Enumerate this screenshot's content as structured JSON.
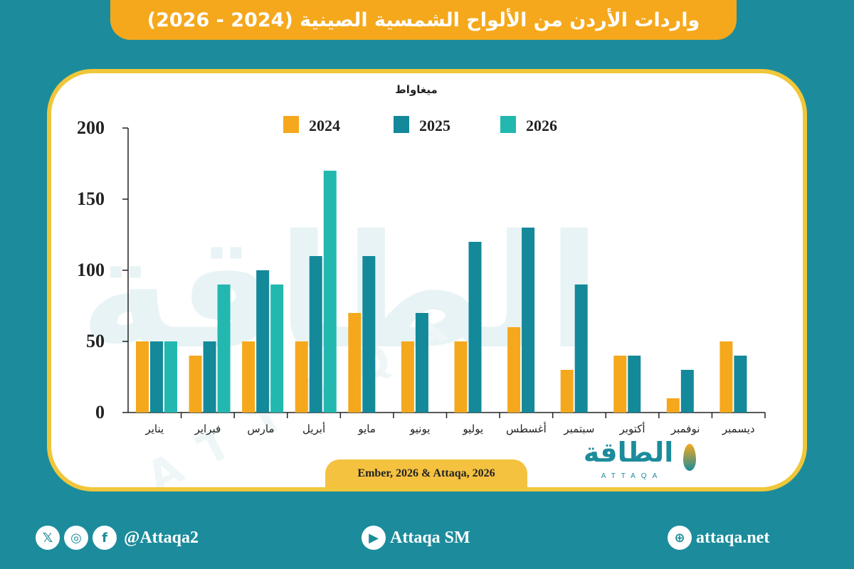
{
  "title": "واردات الأردن من الألواح الشمسية الصينية (2024 - 2026)",
  "source": "Ember, 2026 & Attaqa, 2026",
  "logo": {
    "word": "الطاقة",
    "latin": "ATTAQA"
  },
  "footer": {
    "handle": "@Attaqa2",
    "youtube": "Attaqa SM",
    "website": "attaqa.net",
    "icons": [
      "x-icon",
      "instagram-icon",
      "facebook-icon",
      "youtube-icon",
      "globe-icon"
    ]
  },
  "colors": {
    "background": "#1c8c9c",
    "title_bar": "#f5a81c",
    "card_border": "#f0c63a"
  },
  "chart_data": {
    "type": "bar",
    "ylabel": "ميغاواط",
    "ylim": [
      0,
      200
    ],
    "yticks": [
      0,
      50,
      100,
      150,
      200
    ],
    "grid": false,
    "legend_position": "top",
    "categories": [
      "يناير",
      "فبراير",
      "مارس",
      "أبريل",
      "مايو",
      "يونيو",
      "يوليو",
      "أغسطس",
      "سبتمبر",
      "أكتوبر",
      "نوفمبر",
      "ديسمبر"
    ],
    "series": [
      {
        "name": "2024",
        "color": "#f5a81c",
        "values": [
          50,
          40,
          50,
          50,
          70,
          50,
          50,
          60,
          30,
          40,
          10,
          50
        ]
      },
      {
        "name": "2025",
        "color": "#13899a",
        "values": [
          50,
          50,
          100,
          110,
          110,
          70,
          120,
          130,
          90,
          40,
          30,
          40
        ]
      },
      {
        "name": "2026",
        "color": "#22b8b0",
        "values": [
          50,
          90,
          90,
          170,
          null,
          null,
          null,
          null,
          null,
          null,
          null,
          null
        ]
      }
    ]
  }
}
